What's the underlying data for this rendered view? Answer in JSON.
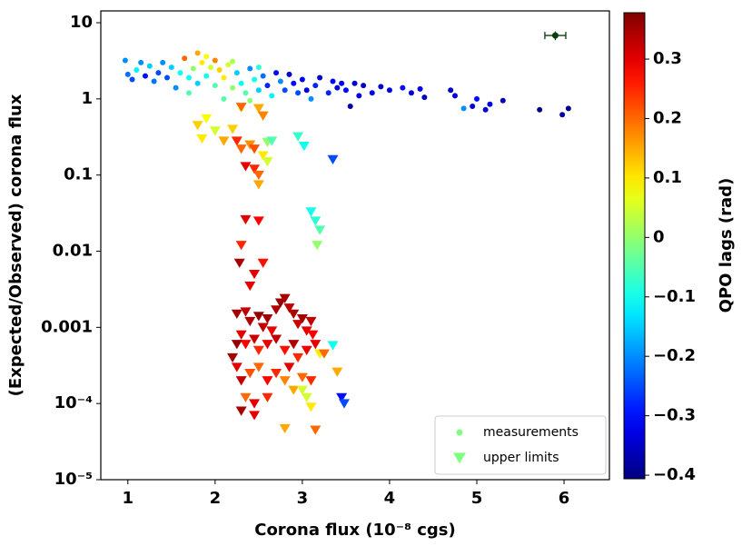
{
  "chart_data": {
    "type": "scatter",
    "xlabel": "Corona flux (10⁻⁸ cgs)",
    "ylabel": "(Expected/Observed) corona flux",
    "xlim": [
      0.69,
      6.52
    ],
    "xticks": [
      1,
      2,
      3,
      4,
      5,
      6
    ],
    "ylim": [
      1e-05,
      14.3
    ],
    "log_y": true,
    "yticks": [
      {
        "value": 1e-05,
        "label": "10⁻⁵"
      },
      {
        "value": 0.0001,
        "label": "10⁻⁴"
      },
      0.001,
      0.01,
      0.1,
      1,
      10
    ],
    "legend": "lower right",
    "series": [
      {
        "name": "measurements",
        "marker": "circle",
        "x": [
          6.05,
          5.98,
          5.72,
          5.3,
          5.15,
          5.1,
          5.0,
          4.95,
          4.85,
          4.75,
          4.7,
          4.4,
          4.35,
          4.25,
          4.15,
          4.0,
          3.9,
          3.8,
          3.7,
          3.65,
          3.6,
          3.55,
          3.5,
          3.45,
          3.4,
          3.35,
          3.3,
          3.2,
          3.15,
          3.1,
          3.05,
          3.0,
          2.95,
          2.9,
          2.85,
          2.8,
          2.75,
          2.7,
          2.65,
          2.6,
          2.55,
          2.5,
          2.45,
          2.4,
          2.35,
          2.3,
          2.25,
          2.2,
          2.15,
          2.1,
          2.05,
          2.0,
          2.0,
          1.95,
          1.9,
          1.85,
          1.8,
          1.8,
          1.75,
          1.7,
          1.65,
          1.6,
          1.55,
          1.5,
          1.45,
          1.4,
          1.35,
          1.3,
          1.25,
          1.2,
          1.15,
          1.1,
          1.05,
          1.0,
          0.97,
          2.3,
          2.1,
          2.5,
          2.2,
          1.9,
          2.4,
          1.7
        ],
        "values": [
          0.75,
          0.62,
          0.72,
          0.95,
          0.85,
          0.72,
          1.0,
          0.8,
          0.75,
          1.1,
          1.3,
          1.05,
          1.35,
          1.2,
          1.4,
          1.3,
          1.45,
          1.2,
          1.5,
          1.1,
          1.6,
          0.8,
          1.3,
          1.6,
          1.4,
          1.7,
          1.2,
          1.9,
          1.5,
          1.0,
          1.3,
          1.8,
          1.2,
          1.6,
          2.1,
          1.3,
          1.7,
          2.2,
          1.1,
          1.5,
          2.0,
          1.3,
          1.8,
          2.5,
          1.2,
          1.6,
          2.2,
          1.4,
          2.8,
          1.9,
          2.4,
          3.2,
          1.5,
          2.6,
          2.0,
          3.0,
          4.0,
          1.6,
          2.5,
          1.9,
          3.4,
          2.2,
          1.4,
          2.6,
          1.9,
          3.0,
          2.2,
          1.7,
          2.7,
          2.0,
          3.0,
          2.4,
          1.8,
          2.1,
          3.2,
          0.75,
          1.0,
          2.6,
          3.1,
          3.6,
          0.95,
          1.2
        ],
        "lags": [
          -0.39,
          -0.38,
          -0.4,
          -0.36,
          -0.33,
          -0.34,
          -0.3,
          -0.35,
          -0.2,
          -0.33,
          -0.35,
          -0.36,
          -0.32,
          -0.34,
          -0.3,
          -0.33,
          -0.35,
          -0.32,
          -0.35,
          -0.33,
          -0.34,
          -0.38,
          -0.3,
          -0.32,
          -0.34,
          -0.31,
          -0.28,
          -0.35,
          -0.28,
          -0.2,
          -0.33,
          -0.32,
          -0.25,
          -0.3,
          -0.35,
          -0.25,
          -0.2,
          -0.3,
          -0.12,
          -0.28,
          -0.22,
          -0.15,
          -0.1,
          -0.2,
          -0.05,
          -0.1,
          -0.15,
          0.0,
          0.05,
          0.1,
          0.12,
          0.18,
          -0.05,
          0.05,
          -0.1,
          0.1,
          0.15,
          -0.15,
          0.0,
          -0.1,
          0.2,
          -0.1,
          -0.2,
          -0.15,
          -0.25,
          -0.2,
          -0.25,
          -0.22,
          -0.15,
          -0.3,
          -0.2,
          -0.12,
          -0.25,
          -0.22,
          -0.2,
          0.05,
          -0.05,
          -0.08,
          0.02,
          0.08,
          0.0,
          -0.05
        ]
      },
      {
        "name": "upper limits",
        "marker": "triangle-down",
        "x": [
          2.3,
          2.5,
          2.55,
          1.8,
          1.85,
          2.0,
          1.9,
          2.1,
          2.2,
          2.25,
          2.3,
          2.4,
          2.45,
          2.6,
          2.65,
          2.55,
          2.6,
          2.35,
          2.45,
          2.5,
          2.5,
          2.95,
          3.02,
          3.35,
          3.1,
          3.15,
          3.2,
          3.17,
          2.35,
          2.5,
          2.3,
          2.28,
          2.45,
          2.55,
          2.4,
          2.25,
          2.35,
          2.4,
          2.5,
          2.55,
          2.6,
          2.65,
          2.7,
          2.75,
          2.8,
          2.85,
          2.9,
          2.95,
          3.0,
          3.05,
          3.1,
          3.12,
          2.3,
          2.35,
          2.45,
          2.5,
          2.6,
          2.7,
          2.8,
          2.9,
          2.95,
          3.05,
          3.15,
          2.2,
          2.25,
          2.3,
          2.4,
          2.5,
          2.6,
          2.7,
          2.8,
          2.85,
          2.9,
          3.0,
          3.1,
          2.35,
          2.45,
          2.6,
          3.0,
          3.05,
          3.4,
          3.35,
          3.45,
          3.48,
          2.3,
          2.45,
          2.8,
          3.15,
          3.1,
          3.2,
          3.25,
          2.25
        ],
        "values": [
          0.78,
          0.75,
          0.6,
          0.45,
          0.3,
          0.38,
          0.55,
          0.28,
          0.4,
          0.28,
          0.22,
          0.25,
          0.22,
          0.27,
          0.28,
          0.18,
          0.15,
          0.13,
          0.12,
          0.1,
          0.075,
          0.32,
          0.24,
          0.16,
          0.033,
          0.025,
          0.019,
          0.012,
          0.026,
          0.025,
          0.012,
          0.007,
          0.005,
          0.007,
          0.0035,
          0.0015,
          0.0016,
          0.0012,
          0.0014,
          0.001,
          0.0013,
          0.0009,
          0.0017,
          0.0021,
          0.0024,
          0.0018,
          0.0015,
          0.0011,
          0.0013,
          0.0009,
          0.0012,
          0.0008,
          0.0008,
          0.0006,
          0.0007,
          0.0005,
          0.0006,
          0.0007,
          0.0005,
          0.0006,
          0.0004,
          0.0005,
          0.0006,
          0.0004,
          0.0003,
          0.0002,
          0.00025,
          0.0003,
          0.0002,
          0.00025,
          0.0002,
          0.0003,
          0.00015,
          0.00022,
          0.0002,
          0.00012,
          0.0001,
          0.00012,
          0.00015,
          0.00012,
          0.00026,
          0.00058,
          0.00012,
          0.0001,
          8e-05,
          7e-05,
          4.7e-05,
          4.5e-05,
          9e-05,
          0.00045,
          0.00045,
          0.0006
        ],
        "lags": [
          0.2,
          0.15,
          0.18,
          0.12,
          0.1,
          0.05,
          0.08,
          0.15,
          0.12,
          0.25,
          0.2,
          0.17,
          0.22,
          0.0,
          -0.05,
          0.1,
          0.05,
          0.3,
          0.25,
          0.2,
          0.15,
          -0.07,
          -0.1,
          -0.25,
          -0.1,
          -0.08,
          -0.05,
          0.0,
          0.3,
          0.28,
          0.25,
          0.35,
          0.3,
          0.27,
          0.3,
          0.35,
          0.33,
          0.34,
          0.36,
          0.33,
          0.35,
          0.3,
          0.34,
          0.36,
          0.35,
          0.33,
          0.34,
          0.32,
          0.35,
          0.3,
          0.33,
          0.28,
          0.3,
          0.28,
          0.32,
          0.25,
          0.3,
          0.33,
          0.27,
          0.34,
          0.25,
          0.29,
          0.3,
          0.35,
          0.3,
          0.33,
          0.22,
          0.2,
          0.28,
          0.25,
          0.18,
          0.3,
          0.15,
          0.2,
          0.25,
          0.2,
          0.3,
          0.25,
          0.05,
          0.05,
          0.15,
          -0.1,
          -0.3,
          -0.25,
          0.35,
          0.3,
          0.15,
          0.2,
          0.1,
          0.1,
          0.2,
          0.36
        ]
      }
    ],
    "error_point": {
      "x": 5.9,
      "y": 6.8,
      "xerr": 0.12,
      "yerr": 0.9,
      "color": "#0b3d0b"
    },
    "colorbar": {
      "label": "QPO lags (rad)",
      "colormap": "jet",
      "lim": [
        -0.406,
        0.378
      ],
      "ticks": [
        {
          "value": -0.4,
          "label": "−0.4"
        },
        {
          "value": -0.3,
          "label": "−0.3"
        },
        {
          "value": -0.2,
          "label": "−0.2"
        },
        {
          "value": -0.1,
          "label": "−0.1"
        },
        0,
        0.1,
        0.2,
        0.3
      ]
    }
  }
}
